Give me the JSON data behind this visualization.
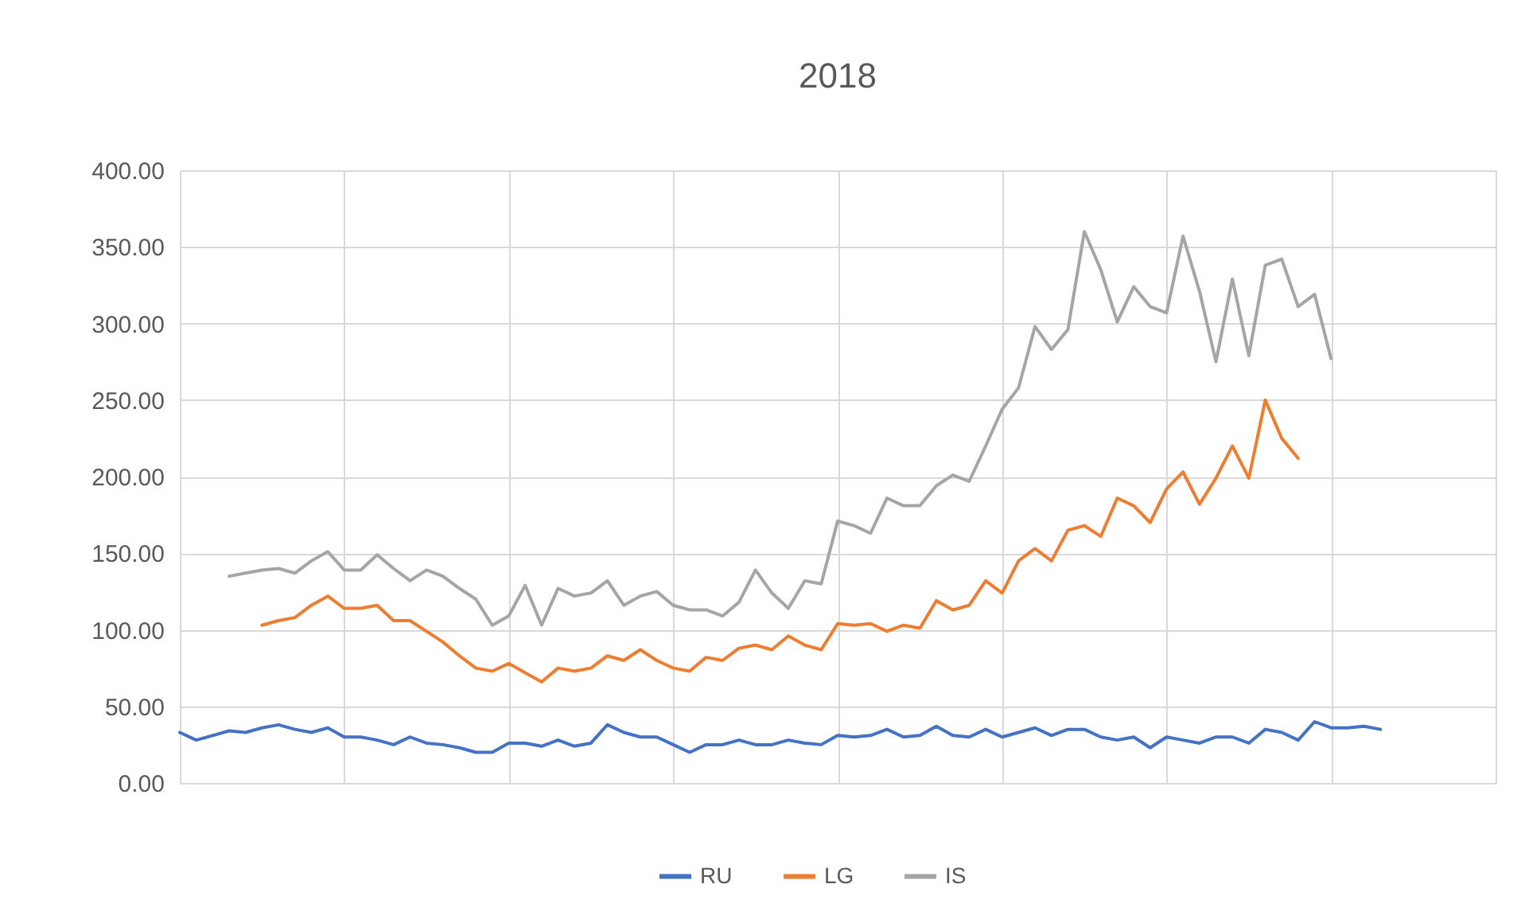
{
  "chart_data": {
    "type": "line",
    "title": "2018",
    "categories": [
      null,
      null,
      null,
      null,
      null,
      null,
      null,
      null,
      null,
      null,
      null,
      null,
      null,
      null,
      null,
      null,
      null,
      null,
      null,
      null,
      null,
      null,
      null,
      null,
      null,
      null,
      null,
      null,
      null,
      null,
      null,
      null,
      null,
      null,
      null,
      null,
      null,
      null,
      null,
      null,
      null,
      null,
      null,
      null,
      null,
      null,
      null,
      null,
      null,
      null,
      null,
      null,
      null,
      null,
      null,
      null,
      null,
      null,
      null,
      null,
      null,
      null,
      null,
      null,
      null,
      null,
      null,
      null,
      null,
      null,
      null,
      null,
      null,
      null,
      null,
      null,
      null,
      null,
      null,
      null,
      null
    ],
    "series": [
      {
        "name": "RU",
        "color": "#4472c4",
        "values": [
          33,
          28,
          31,
          34,
          33,
          36,
          38,
          35,
          33,
          36,
          30,
          30,
          28,
          25,
          30,
          26,
          25,
          23,
          20,
          20,
          26,
          26,
          24,
          28,
          24,
          26,
          38,
          33,
          30,
          30,
          25,
          20,
          25,
          25,
          28,
          25,
          25,
          28,
          26,
          25,
          31,
          30,
          31,
          35,
          30,
          31,
          37,
          31,
          30,
          35,
          30,
          33,
          36,
          31,
          35,
          35,
          30,
          28,
          30,
          23,
          30,
          28,
          26,
          30,
          30,
          26,
          35,
          33,
          28,
          40,
          36,
          36,
          37,
          35,
          null,
          null,
          null,
          null,
          null,
          null,
          null
        ]
      },
      {
        "name": "LG",
        "color": "#ed7d31",
        "values": [
          null,
          null,
          null,
          null,
          null,
          103,
          106,
          108,
          116,
          122,
          114,
          114,
          116,
          106,
          106,
          99,
          92,
          83,
          75,
          73,
          78,
          72,
          66,
          75,
          73,
          75,
          83,
          80,
          87,
          80,
          75,
          73,
          82,
          80,
          88,
          90,
          87,
          96,
          90,
          87,
          104,
          103,
          104,
          99,
          103,
          101,
          119,
          113,
          116,
          132,
          124,
          145,
          153,
          145,
          165,
          168,
          161,
          186,
          181,
          170,
          192,
          203,
          182,
          199,
          220,
          199,
          250,
          225,
          212,
          null,
          null,
          null,
          null,
          null,
          null,
          null,
          null,
          null,
          null,
          null,
          null
        ]
      },
      {
        "name": "IS",
        "color": "#a5a5a5",
        "values": [
          null,
          null,
          null,
          135,
          137,
          139,
          140,
          137,
          145,
          151,
          139,
          139,
          149,
          140,
          132,
          139,
          135,
          127,
          120,
          103,
          109,
          129,
          103,
          127,
          122,
          124,
          132,
          116,
          122,
          125,
          116,
          113,
          113,
          109,
          118,
          139,
          124,
          114,
          132,
          130,
          171,
          168,
          163,
          186,
          181,
          181,
          194,
          201,
          197,
          220,
          244,
          258,
          298,
          283,
          296,
          360,
          335,
          301,
          324,
          311,
          307,
          357,
          321,
          275,
          329,
          279,
          338,
          342,
          311,
          319,
          277,
          null,
          null,
          null,
          null,
          null,
          null,
          null,
          null,
          null,
          null
        ]
      }
    ],
    "ylim": [
      0,
      400
    ],
    "yticks": [
      {
        "value": 0,
        "label": "0.00"
      },
      {
        "value": 50,
        "label": "50.00"
      },
      {
        "value": 100,
        "label": "100.00"
      },
      {
        "value": 150,
        "label": "150.00"
      },
      {
        "value": 200,
        "label": "200.00"
      },
      {
        "value": 250,
        "label": "250.00"
      },
      {
        "value": 300,
        "label": "300.00"
      },
      {
        "value": 350,
        "label": "350.00"
      },
      {
        "value": 400,
        "label": "400.00"
      }
    ],
    "grid": true,
    "legend": "bottom"
  }
}
